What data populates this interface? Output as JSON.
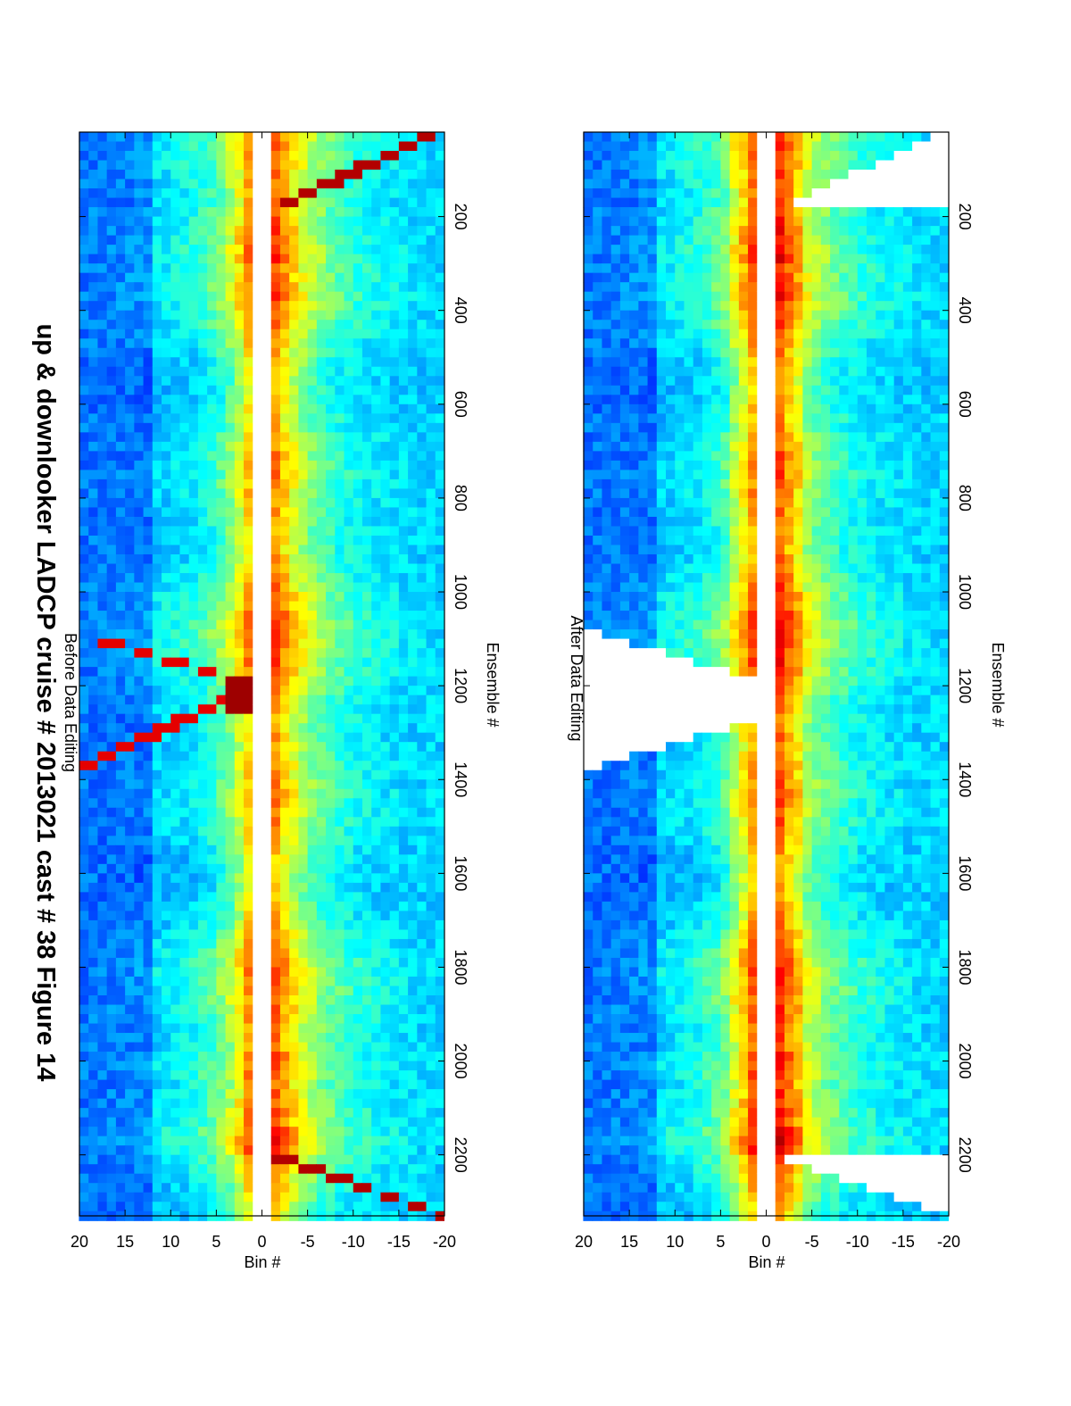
{
  "figure": {
    "title": "up & downlooker LADCP cruise # 2013021 cast # 38  Figure 14"
  },
  "colors": {
    "jet_dark": "#00008f",
    "jet_blue": "#0000ff",
    "jet_cyan": "#00ffff",
    "jet_yellow": "#ffff00",
    "jet_red": "#ff0000",
    "jet_darkred": "#800000",
    "blank": "#ffffff"
  },
  "chart_data": [
    {
      "type": "heatmap",
      "subtitle": "Before Data Editing",
      "xlabel": "Ensemble #",
      "ylabel": "Bin #",
      "xlim": [
        20,
        2330
      ],
      "ylim": [
        -20,
        20
      ],
      "xticks": [
        200,
        400,
        600,
        800,
        1000,
        1200,
        1400,
        1600,
        1800,
        2000,
        2200
      ],
      "yticks": [
        -20,
        -15,
        -10,
        -5,
        0,
        5,
        10,
        15,
        20
      ],
      "colormap": "jet",
      "gap_bins": [
        -0.6,
        0.6
      ],
      "features": {
        "surface_reflection_segments": [
          [
            20,
            190
          ],
          [
            2200,
            2330
          ]
        ],
        "bottom_reflection_v": {
          "start": 1090,
          "apex": 1200,
          "end": 1380
        },
        "bottom_apex_hot_ensembles": [
          1180,
          1260
        ],
        "hot_near_transducer_ensembles": [
          [
            180,
            260
          ],
          [
            2150,
            2180
          ]
        ]
      }
    },
    {
      "type": "heatmap",
      "subtitle": "After Data Editing",
      "xlabel": "Ensemble #",
      "ylabel": "Bin #",
      "xlim": [
        20,
        2330
      ],
      "ylim": [
        -20,
        20
      ],
      "xticks": [
        200,
        400,
        600,
        800,
        1000,
        1200,
        1400,
        1600,
        1800,
        2000,
        2200
      ],
      "yticks": [
        -20,
        -15,
        -10,
        -5,
        0,
        5,
        10,
        15,
        20
      ],
      "colormap": "jet",
      "gap_bins": [
        -1.5,
        1.5
      ],
      "removed_regions": {
        "surface_wedges": [
          [
            20,
            190
          ],
          [
            2200,
            2330
          ]
        ],
        "bottom_v": {
          "start": 1080,
          "apex": 1190,
          "gap_end": 1270,
          "end": 1380
        }
      }
    }
  ]
}
